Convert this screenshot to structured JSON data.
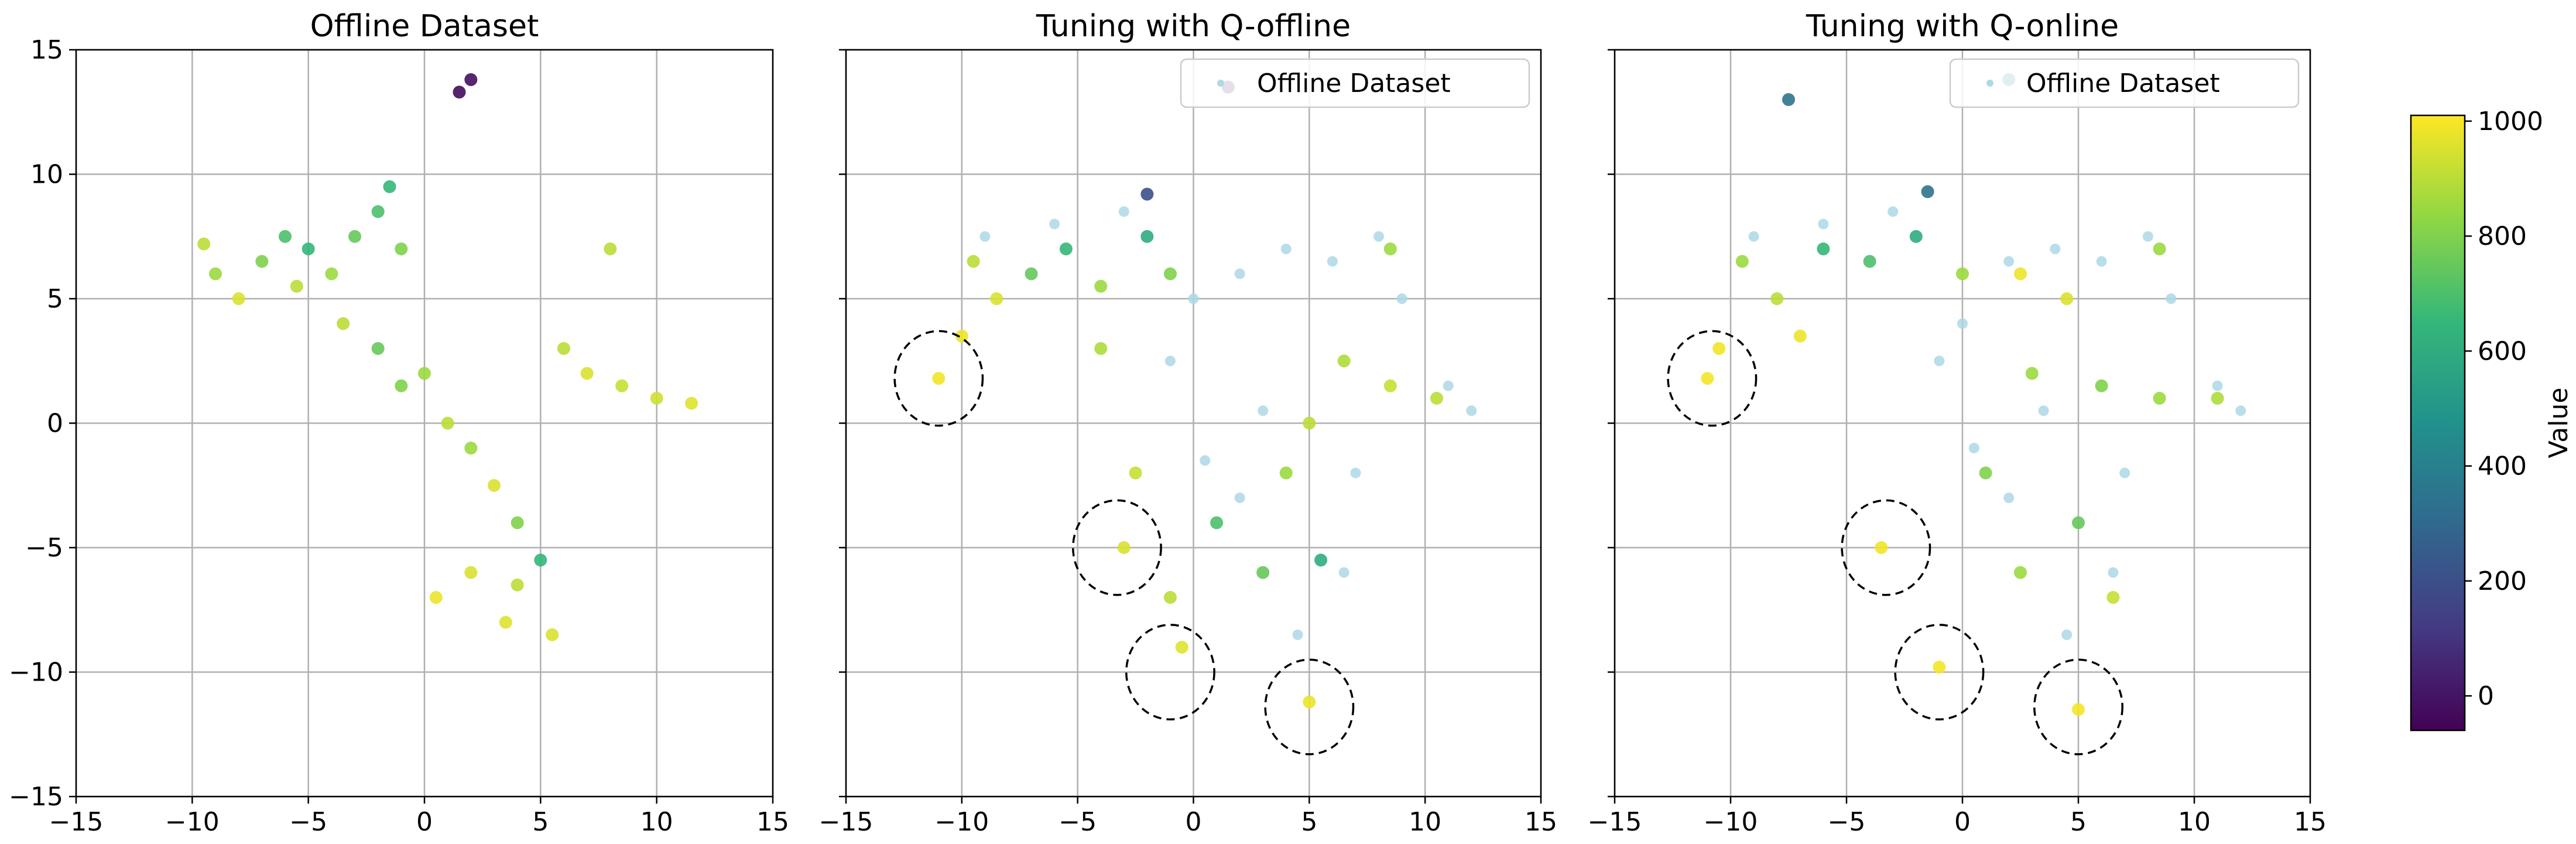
{
  "chart_data": [
    {
      "type": "scatter",
      "title": "Offline Dataset",
      "xlim": [
        -15,
        15
      ],
      "ylim": [
        -15,
        15
      ],
      "xticks": [
        -15,
        -10,
        -5,
        0,
        5,
        10,
        15
      ],
      "yticks": [
        -15,
        -10,
        -5,
        0,
        5,
        10,
        15
      ],
      "xtick_labels": [
        "−15",
        "−10",
        "−5",
        "0",
        "5",
        "10",
        "15"
      ],
      "ytick_labels": [
        "−15",
        "−10",
        "−5",
        "0",
        "5",
        "10",
        "15"
      ],
      "grid": true,
      "legend": null,
      "series": [
        {
          "role": "colored",
          "points": [
            {
              "x": -9.5,
              "y": 7.2,
              "value": 900
            },
            {
              "x": -9.0,
              "y": 6.0,
              "value": 850
            },
            {
              "x": -8.0,
              "y": 5.0,
              "value": 950
            },
            {
              "x": -7.0,
              "y": 6.5,
              "value": 800
            },
            {
              "x": -6.0,
              "y": 7.5,
              "value": 700
            },
            {
              "x": -5.0,
              "y": 7.0,
              "value": 650
            },
            {
              "x": -5.5,
              "y": 5.5,
              "value": 900
            },
            {
              "x": -4.0,
              "y": 6.0,
              "value": 850
            },
            {
              "x": -3.0,
              "y": 7.5,
              "value": 750
            },
            {
              "x": -2.0,
              "y": 8.5,
              "value": 700
            },
            {
              "x": -1.5,
              "y": 9.5,
              "value": 650
            },
            {
              "x": -1.0,
              "y": 7.0,
              "value": 800
            },
            {
              "x": -3.5,
              "y": 4.0,
              "value": 900
            },
            {
              "x": -2.0,
              "y": 3.0,
              "value": 750
            },
            {
              "x": -1.0,
              "y": 1.5,
              "value": 800
            },
            {
              "x": 0.0,
              "y": 2.0,
              "value": 850
            },
            {
              "x": 1.0,
              "y": 0.0,
              "value": 900
            },
            {
              "x": 2.0,
              "y": -1.0,
              "value": 850
            },
            {
              "x": 3.0,
              "y": -2.5,
              "value": 950
            },
            {
              "x": 4.0,
              "y": -4.0,
              "value": 800
            },
            {
              "x": 5.0,
              "y": -5.5,
              "value": 650
            },
            {
              "x": 4.0,
              "y": -6.5,
              "value": 900
            },
            {
              "x": 2.0,
              "y": -6.0,
              "value": 950
            },
            {
              "x": 0.5,
              "y": -7.0,
              "value": 980
            },
            {
              "x": 3.5,
              "y": -8.0,
              "value": 960
            },
            {
              "x": 5.5,
              "y": -8.5,
              "value": 950
            },
            {
              "x": 6.0,
              "y": 3.0,
              "value": 900
            },
            {
              "x": 7.0,
              "y": 2.0,
              "value": 950
            },
            {
              "x": 8.5,
              "y": 1.5,
              "value": 920
            },
            {
              "x": 10.0,
              "y": 1.0,
              "value": 930
            },
            {
              "x": 11.5,
              "y": 0.8,
              "value": 960
            },
            {
              "x": 8.0,
              "y": 7.0,
              "value": 900
            },
            {
              "x": 1.5,
              "y": 13.3,
              "value": -30
            },
            {
              "x": 2.0,
              "y": 13.8,
              "value": -20
            }
          ]
        }
      ],
      "circles": []
    },
    {
      "type": "scatter",
      "title": "Tuning with Q-offline",
      "xlim": [
        -15,
        15
      ],
      "ylim": [
        -15,
        15
      ],
      "xticks": [
        -15,
        -10,
        -5,
        0,
        5,
        10,
        15
      ],
      "yticks": [
        -15,
        -10,
        -5,
        0,
        5,
        10,
        15
      ],
      "xtick_labels": [
        "−15",
        "−10",
        "−5",
        "0",
        "5",
        "10",
        "15"
      ],
      "ytick_labels": [],
      "grid": true,
      "legend": {
        "position": "top-right",
        "entries": [
          "Offline Dataset"
        ]
      },
      "background_series_color": "#add8e6",
      "series": [
        {
          "role": "colored",
          "points": [
            {
              "x": -9.5,
              "y": 6.5,
              "value": 900
            },
            {
              "x": -8.5,
              "y": 5.0,
              "value": 950
            },
            {
              "x": -7.0,
              "y": 6.0,
              "value": 750
            },
            {
              "x": -5.5,
              "y": 7.0,
              "value": 650
            },
            {
              "x": -4.0,
              "y": 5.5,
              "value": 850
            },
            {
              "x": -2.0,
              "y": 7.5,
              "value": 600
            },
            {
              "x": -2.0,
              "y": 9.2,
              "value": 200
            },
            {
              "x": -1.0,
              "y": 6.0,
              "value": 800
            },
            {
              "x": -10.0,
              "y": 3.5,
              "value": 980
            },
            {
              "x": -11.0,
              "y": 1.8,
              "value": 990
            },
            {
              "x": -4.0,
              "y": 3.0,
              "value": 880
            },
            {
              "x": -2.5,
              "y": -2.0,
              "value": 920
            },
            {
              "x": -3.0,
              "y": -5.0,
              "value": 950
            },
            {
              "x": -1.0,
              "y": -7.0,
              "value": 900
            },
            {
              "x": -0.5,
              "y": -9.0,
              "value": 960
            },
            {
              "x": 1.0,
              "y": -4.0,
              "value": 700
            },
            {
              "x": 3.0,
              "y": -6.0,
              "value": 750
            },
            {
              "x": 4.0,
              "y": -2.0,
              "value": 850
            },
            {
              "x": 5.0,
              "y": 0.0,
              "value": 900
            },
            {
              "x": 5.5,
              "y": -5.5,
              "value": 600
            },
            {
              "x": 5.0,
              "y": -11.2,
              "value": 980
            },
            {
              "x": 6.5,
              "y": 2.5,
              "value": 880
            },
            {
              "x": 8.5,
              "y": 1.5,
              "value": 920
            },
            {
              "x": 10.5,
              "y": 1.0,
              "value": 900
            },
            {
              "x": 8.5,
              "y": 7.0,
              "value": 850
            },
            {
              "x": 1.5,
              "y": 13.5,
              "value": -30
            }
          ]
        },
        {
          "role": "offline-dataset",
          "points": [
            {
              "x": -9.0,
              "y": 7.5
            },
            {
              "x": -6.0,
              "y": 8.0
            },
            {
              "x": -3.0,
              "y": 8.5
            },
            {
              "x": 0.0,
              "y": 5.0
            },
            {
              "x": 2.0,
              "y": 6.0
            },
            {
              "x": 4.0,
              "y": 7.0
            },
            {
              "x": 6.0,
              "y": 6.5
            },
            {
              "x": 8.0,
              "y": 7.5
            },
            {
              "x": 9.0,
              "y": 5.0
            },
            {
              "x": 11.0,
              "y": 1.5
            },
            {
              "x": 12.0,
              "y": 0.5
            },
            {
              "x": 3.0,
              "y": 0.5
            },
            {
              "x": 7.0,
              "y": -2.0
            },
            {
              "x": 6.5,
              "y": -6.0
            },
            {
              "x": 2.0,
              "y": -3.0
            },
            {
              "x": 0.5,
              "y": -1.5
            },
            {
              "x": -1.0,
              "y": 2.5
            },
            {
              "x": 4.5,
              "y": -8.5
            }
          ]
        }
      ],
      "circles": [
        {
          "x": -11.0,
          "y": 1.8,
          "r": 1.9
        },
        {
          "x": -3.3,
          "y": -5.0,
          "r": 1.9
        },
        {
          "x": -1.0,
          "y": -10.0,
          "r": 1.9
        },
        {
          "x": 5.0,
          "y": -11.4,
          "r": 1.9
        }
      ]
    },
    {
      "type": "scatter",
      "title": "Tuning with Q-online",
      "xlim": [
        -15,
        15
      ],
      "ylim": [
        -15,
        15
      ],
      "xticks": [
        -15,
        -10,
        -5,
        0,
        5,
        10,
        15
      ],
      "yticks": [
        -15,
        -10,
        -5,
        0,
        5,
        10,
        15
      ],
      "xtick_labels": [
        "−15",
        "−10",
        "−5",
        "0",
        "5",
        "10",
        "15"
      ],
      "ytick_labels": [],
      "grid": true,
      "legend": {
        "position": "top-right",
        "entries": [
          "Offline Dataset"
        ]
      },
      "background_series_color": "#add8e6",
      "series": [
        {
          "role": "colored",
          "points": [
            {
              "x": -9.5,
              "y": 6.5,
              "value": 850
            },
            {
              "x": -8.0,
              "y": 5.0,
              "value": 900
            },
            {
              "x": -6.0,
              "y": 7.0,
              "value": 650
            },
            {
              "x": -4.0,
              "y": 6.5,
              "value": 700
            },
            {
              "x": -2.0,
              "y": 7.5,
              "value": 600
            },
            {
              "x": -1.5,
              "y": 9.3,
              "value": 350
            },
            {
              "x": 0.0,
              "y": 6.0,
              "value": 850
            },
            {
              "x": 2.5,
              "y": 6.0,
              "value": 980
            },
            {
              "x": -11.0,
              "y": 1.8,
              "value": 995
            },
            {
              "x": -10.5,
              "y": 3.0,
              "value": 990
            },
            {
              "x": -7.0,
              "y": 3.5,
              "value": 980
            },
            {
              "x": -3.5,
              "y": -5.0,
              "value": 990
            },
            {
              "x": -1.0,
              "y": -9.8,
              "value": 995
            },
            {
              "x": 5.0,
              "y": -11.5,
              "value": 995
            },
            {
              "x": 1.0,
              "y": -2.0,
              "value": 800
            },
            {
              "x": 3.0,
              "y": 2.0,
              "value": 850
            },
            {
              "x": 4.5,
              "y": 5.0,
              "value": 950
            },
            {
              "x": 2.5,
              "y": -6.0,
              "value": 850
            },
            {
              "x": 5.0,
              "y": -4.0,
              "value": 750
            },
            {
              "x": 6.0,
              "y": 1.5,
              "value": 800
            },
            {
              "x": 8.5,
              "y": 1.0,
              "value": 850
            },
            {
              "x": 11.0,
              "y": 1.0,
              "value": 880
            },
            {
              "x": 8.5,
              "y": 7.0,
              "value": 850
            },
            {
              "x": 6.5,
              "y": -7.0,
              "value": 920
            },
            {
              "x": -7.5,
              "y": 13.0,
              "value": 350
            },
            {
              "x": 2.0,
              "y": 13.8,
              "value": 400
            }
          ]
        },
        {
          "role": "offline-dataset",
          "points": [
            {
              "x": -9.0,
              "y": 7.5
            },
            {
              "x": -6.0,
              "y": 8.0
            },
            {
              "x": -3.0,
              "y": 8.5
            },
            {
              "x": 0.0,
              "y": 4.0
            },
            {
              "x": 2.0,
              "y": 6.5
            },
            {
              "x": 4.0,
              "y": 7.0
            },
            {
              "x": 6.0,
              "y": 6.5
            },
            {
              "x": 8.0,
              "y": 7.5
            },
            {
              "x": 9.0,
              "y": 5.0
            },
            {
              "x": 11.0,
              "y": 1.5
            },
            {
              "x": 12.0,
              "y": 0.5
            },
            {
              "x": 3.5,
              "y": 0.5
            },
            {
              "x": 7.0,
              "y": -2.0
            },
            {
              "x": 6.5,
              "y": -6.0
            },
            {
              "x": 2.0,
              "y": -3.0
            },
            {
              "x": 0.5,
              "y": -1.0
            },
            {
              "x": -1.0,
              "y": 2.5
            },
            {
              "x": 4.5,
              "y": -8.5
            }
          ]
        }
      ],
      "circles": [
        {
          "x": -10.8,
          "y": 1.8,
          "r": 1.9
        },
        {
          "x": -3.3,
          "y": -5.0,
          "r": 1.9
        },
        {
          "x": -1.0,
          "y": -10.0,
          "r": 1.9
        },
        {
          "x": 5.0,
          "y": -11.4,
          "r": 1.9
        }
      ]
    }
  ],
  "colorbar": {
    "label": "Value",
    "range": [
      -60,
      1010
    ],
    "ticks": [
      0,
      200,
      400,
      600,
      800,
      1000
    ],
    "tick_labels": [
      "0",
      "200",
      "400",
      "600",
      "800",
      "1000"
    ],
    "colormap": "viridis",
    "stops": [
      "#440154",
      "#443a83",
      "#31688e",
      "#21918c",
      "#35b779",
      "#90d743",
      "#fde725"
    ]
  }
}
